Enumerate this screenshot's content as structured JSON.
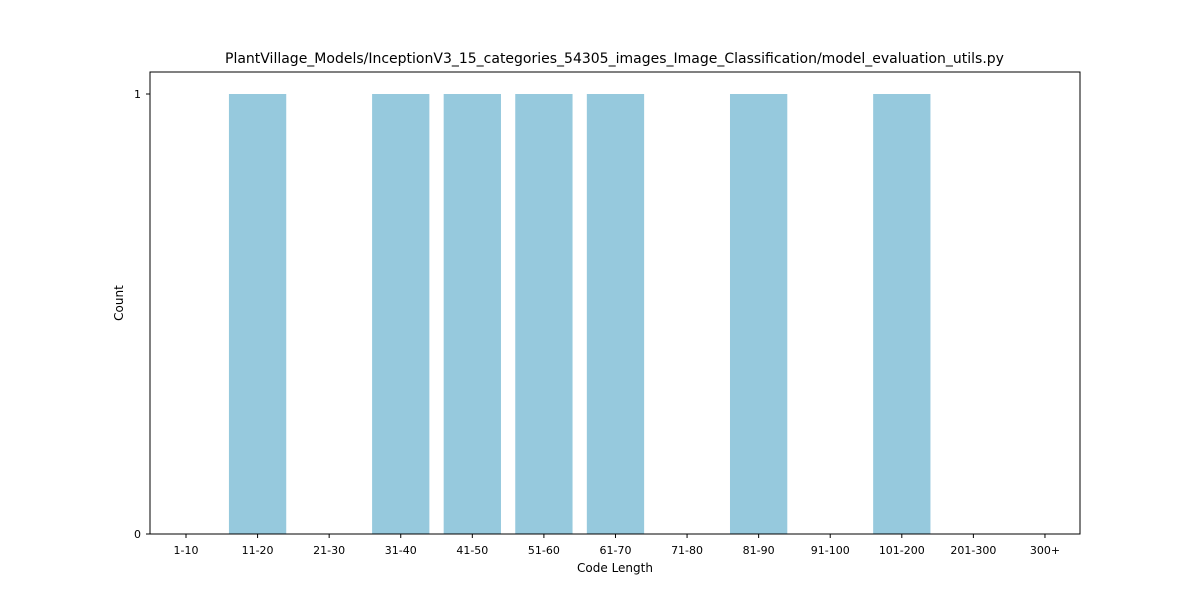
{
  "chart_data": {
    "type": "bar",
    "title": "PlantVillage_Models/InceptionV3_15_categories_54305_images_Image_Classification/model_evaluation_utils.py",
    "xlabel": "Code Length",
    "ylabel": "Count",
    "categories": [
      "1-10",
      "11-20",
      "21-30",
      "31-40",
      "41-50",
      "51-60",
      "61-70",
      "71-80",
      "81-90",
      "91-100",
      "101-200",
      "201-300",
      "300+"
    ],
    "values": [
      0,
      1,
      0,
      1,
      1,
      1,
      1,
      0,
      1,
      0,
      1,
      0,
      0
    ],
    "ylim": [
      0,
      1.05
    ],
    "yticks": [
      0,
      1
    ],
    "bar_color": "#96c9dd",
    "grid": false,
    "legend": "none"
  }
}
